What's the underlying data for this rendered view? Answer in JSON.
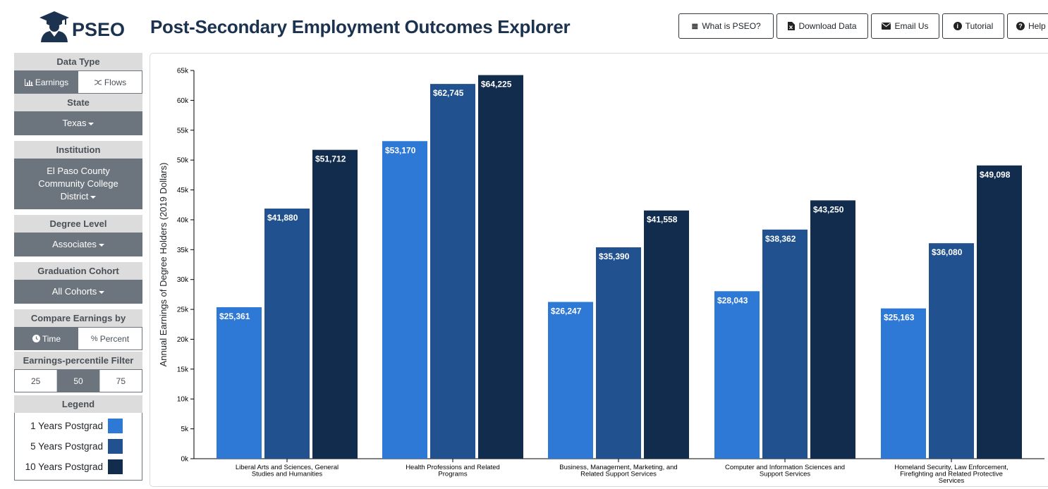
{
  "header": {
    "logo_text": "PSEO",
    "title": "Post-Secondary Employment Outcomes Explorer",
    "nav": [
      {
        "label": "What is PSEO?",
        "icon": "list-icon"
      },
      {
        "label": "Download Data",
        "icon": "file-excel-icon"
      },
      {
        "label": "Email Us",
        "icon": "envelope-icon"
      },
      {
        "label": "Tutorial",
        "icon": "info-circle-icon"
      },
      {
        "label": "Help",
        "icon": "question-circle-icon"
      }
    ]
  },
  "sidebar": {
    "data_type": {
      "label": "Data Type",
      "options": [
        "Earnings",
        "Flows"
      ],
      "selected": "Earnings"
    },
    "state": {
      "label": "State",
      "value": "Texas"
    },
    "institution": {
      "label": "Institution",
      "value_lines": [
        "El Paso County",
        "Community College",
        "District"
      ]
    },
    "degree_level": {
      "label": "Degree Level",
      "value": "Associates"
    },
    "cohort": {
      "label": "Graduation Cohort",
      "value": "All Cohorts"
    },
    "compare": {
      "label": "Compare Earnings by",
      "options": [
        "Time",
        "Percent"
      ],
      "selected": "Time"
    },
    "percentile": {
      "label": "Earnings-percentile Filter",
      "options": [
        "25",
        "50",
        "75"
      ],
      "selected": "50"
    },
    "legend": {
      "label": "Legend",
      "items": [
        {
          "label": "1 Years Postgrad",
          "color": "#2e78d6"
        },
        {
          "label": "5 Years Postgrad",
          "color": "#21528f"
        },
        {
          "label": "10 Years Postgrad",
          "color": "#112c4d"
        }
      ]
    }
  },
  "chart_data": {
    "type": "bar",
    "ylabel": "Annual Earnings of Degree Holders (2019 Dollars)",
    "ylim": [
      0,
      65000
    ],
    "yticks": [
      "0k",
      "5k",
      "10k",
      "15k",
      "20k",
      "25k",
      "30k",
      "35k",
      "40k",
      "45k",
      "50k",
      "55k",
      "60k",
      "65k"
    ],
    "categories": [
      [
        "Liberal Arts and Sciences, General",
        "Studies and Humanities"
      ],
      [
        "Health Professions and Related",
        "Programs"
      ],
      [
        "Business, Management, Marketing, and",
        "Related Support Services"
      ],
      [
        "Computer and Information Sciences and",
        "Support Services"
      ],
      [
        "Homeland Security, Law Enforcement,",
        "Firefighting and Related Protective",
        "Services"
      ]
    ],
    "series": [
      {
        "name": "1 Years Postgrad",
        "color": "#2e78d6",
        "values": [
          25361,
          53170,
          26247,
          28043,
          25163
        ],
        "labels": [
          "$25,361",
          "$53,170",
          "$26,247",
          "$28,043",
          "$25,163"
        ]
      },
      {
        "name": "5 Years Postgrad",
        "color": "#21528f",
        "values": [
          41880,
          62745,
          35390,
          38362,
          36080
        ],
        "labels": [
          "$41,880",
          "$62,745",
          "$35,390",
          "$38,362",
          "$36,080"
        ]
      },
      {
        "name": "10 Years Postgrad",
        "color": "#112c4d",
        "values": [
          51712,
          64225,
          41558,
          43250,
          49098
        ],
        "labels": [
          "$51,712",
          "$64,225",
          "$41,558",
          "$43,250",
          "$49,098"
        ]
      }
    ],
    "grid": false,
    "legend": "left-sidebar"
  }
}
